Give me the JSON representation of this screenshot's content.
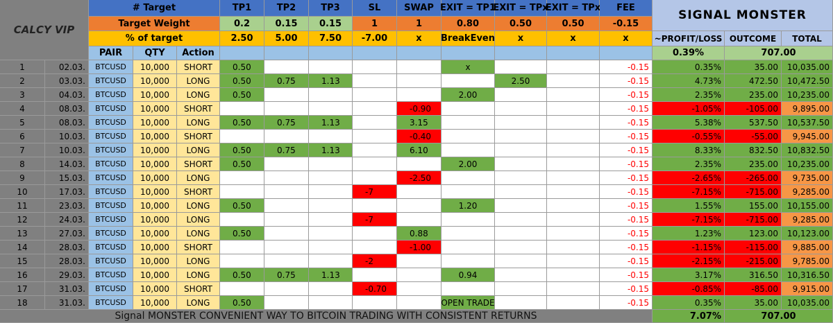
{
  "brand": "CALCY VIP",
  "title": "SIGNAL MONSTER",
  "target_row": {
    "label": "# Target",
    "cols": [
      "TP1",
      "TP2",
      "TP3",
      "SL",
      "SWAP",
      "EXIT = TP1",
      "EXIT = TPx",
      "EXIT = TPx",
      "FEE"
    ]
  },
  "weight_row": {
    "label": "Target Weight",
    "values": [
      "0.2",
      "0.15",
      "0.15",
      "1",
      "1",
      "0.80",
      "0.50",
      "0.50",
      "-0.15"
    ]
  },
  "percent_row": {
    "label": "% of target",
    "values": [
      "2.50",
      "5.00",
      "7.50",
      "-7.00",
      "x",
      "BreakEven",
      "x",
      "x",
      "x"
    ]
  },
  "column_headers": [
    "PAIR",
    "QTY",
    "Action"
  ],
  "summary_headers": [
    "~PROFIT/LOSS",
    "OUTCOME",
    "TOTAL"
  ],
  "summary": {
    "profit_loss": "0.39%",
    "outcome": "707.00"
  },
  "rows": [
    {
      "n": "1",
      "date": "02.03.",
      "pair": "BTCUSD",
      "qty": "10,000",
      "action": "SHORT",
      "tp1": "0.50",
      "exit_tp1": "x",
      "fee": "-0.15",
      "pl": "0.35%",
      "outcome": "35.00",
      "total": "10,035.00"
    },
    {
      "n": "2",
      "date": "03.03.",
      "pair": "BTCUSD",
      "qty": "10,000",
      "action": "LONG",
      "tp1": "0.50",
      "tp2": "0.75",
      "tp3": "1.13",
      "exit_tpx1": "2.50",
      "fee": "-0.15",
      "pl": "4.73%",
      "outcome": "472.50",
      "total": "10,472.50"
    },
    {
      "n": "3",
      "date": "04.03.",
      "pair": "BTCUSD",
      "qty": "10,000",
      "action": "LONG",
      "tp1": "0.50",
      "exit_tp1": "2.00",
      "fee": "-0.15",
      "pl": "2.35%",
      "outcome": "235.00",
      "total": "10,235.00"
    },
    {
      "n": "4",
      "date": "08.03.",
      "pair": "BTCUSD",
      "qty": "10,000",
      "action": "SHORT",
      "swap": "-0.90",
      "fee": "-0.15",
      "pl": "-1.05%",
      "outcome": "-105.00",
      "total": "9,895.00"
    },
    {
      "n": "5",
      "date": "08.03.",
      "pair": "BTCUSD",
      "qty": "10,000",
      "action": "LONG",
      "tp1": "0.50",
      "tp2": "0.75",
      "tp3": "1.13",
      "swap": "3.15",
      "fee": "-0.15",
      "pl": "5.38%",
      "outcome": "537.50",
      "total": "10,537.50"
    },
    {
      "n": "6",
      "date": "10.03.",
      "pair": "BTCUSD",
      "qty": "10,000",
      "action": "SHORT",
      "swap": "-0.40",
      "fee": "-0.15",
      "pl": "-0.55%",
      "outcome": "-55.00",
      "total": "9,945.00"
    },
    {
      "n": "7",
      "date": "10.03.",
      "pair": "BTCUSD",
      "qty": "10,000",
      "action": "LONG",
      "tp1": "0.50",
      "tp2": "0.75",
      "tp3": "1.13",
      "swap": "6.10",
      "fee": "-0.15",
      "pl": "8.33%",
      "outcome": "832.50",
      "total": "10,832.50"
    },
    {
      "n": "8",
      "date": "14.03.",
      "pair": "BTCUSD",
      "qty": "10,000",
      "action": "SHORT",
      "tp1": "0.50",
      "exit_tp1": "2.00",
      "fee": "-0.15",
      "pl": "2.35%",
      "outcome": "235.00",
      "total": "10,235.00"
    },
    {
      "n": "9",
      "date": "15.03.",
      "pair": "BTCUSD",
      "qty": "10,000",
      "action": "LONG",
      "swap": "-2.50",
      "fee": "-0.15",
      "pl": "-2.65%",
      "outcome": "-265.00",
      "total": "9,735.00"
    },
    {
      "n": "10",
      "date": "17.03.",
      "pair": "BTCUSD",
      "qty": "10,000",
      "action": "SHORT",
      "sl": "-7",
      "fee": "-0.15",
      "pl": "-7.15%",
      "outcome": "-715.00",
      "total": "9,285.00"
    },
    {
      "n": "11",
      "date": "23.03.",
      "pair": "BTCUSD",
      "qty": "10,000",
      "action": "LONG",
      "tp1": "0.50",
      "exit_tp1": "1.20",
      "fee": "-0.15",
      "pl": "1.55%",
      "outcome": "155.00",
      "total": "10,155.00"
    },
    {
      "n": "12",
      "date": "24.03.",
      "pair": "BTCUSD",
      "qty": "10,000",
      "action": "LONG",
      "sl": "-7",
      "fee": "-0.15",
      "pl": "-7.15%",
      "outcome": "-715.00",
      "total": "9,285.00"
    },
    {
      "n": "13",
      "date": "27.03.",
      "pair": "BTCUSD",
      "qty": "10,000",
      "action": "LONG",
      "tp1": "0.50",
      "swap": "0.88",
      "fee": "-0.15",
      "pl": "1.23%",
      "outcome": "123.00",
      "total": "10,123.00"
    },
    {
      "n": "14",
      "date": "28.03.",
      "pair": "BTCUSD",
      "qty": "10,000",
      "action": "SHORT",
      "swap": "-1.00",
      "fee": "-0.15",
      "pl": "-1.15%",
      "outcome": "-115.00",
      "total": "9,885.00"
    },
    {
      "n": "15",
      "date": "28.03.",
      "pair": "BTCUSD",
      "qty": "10,000",
      "action": "LONG",
      "sl": "-2",
      "fee": "-0.15",
      "pl": "-2.15%",
      "outcome": "-215.00",
      "total": "9,785.00"
    },
    {
      "n": "16",
      "date": "29.03.",
      "pair": "BTCUSD",
      "qty": "10,000",
      "action": "LONG",
      "tp1": "0.50",
      "tp2": "0.75",
      "tp3": "1.13",
      "exit_tp1": "0.94",
      "fee": "-0.15",
      "pl": "3.17%",
      "outcome": "316.50",
      "total": "10,316.50"
    },
    {
      "n": "17",
      "date": "31.03.",
      "pair": "BTCUSD",
      "qty": "10,000",
      "action": "SHORT",
      "sl": "-0.70",
      "fee": "-0.15",
      "pl": "-0.85%",
      "outcome": "-85.00",
      "total": "9,915.00"
    },
    {
      "n": "18",
      "date": "31.03.",
      "pair": "BTCUSD",
      "qty": "10,000",
      "action": "LONG",
      "tp1": "0.50",
      "exit_tp1": "OPEN TRADE",
      "fee": "-0.15",
      "pl": "0.35%",
      "outcome": "35.00",
      "total": "10,035.00"
    }
  ],
  "footer": {
    "text": "Signal MONSTER CONVENIENT WAY TO BITCOIN TRADING WITH CONSISTENT RETURNS",
    "profit_loss": "7.07%",
    "outcome": "707.00"
  }
}
